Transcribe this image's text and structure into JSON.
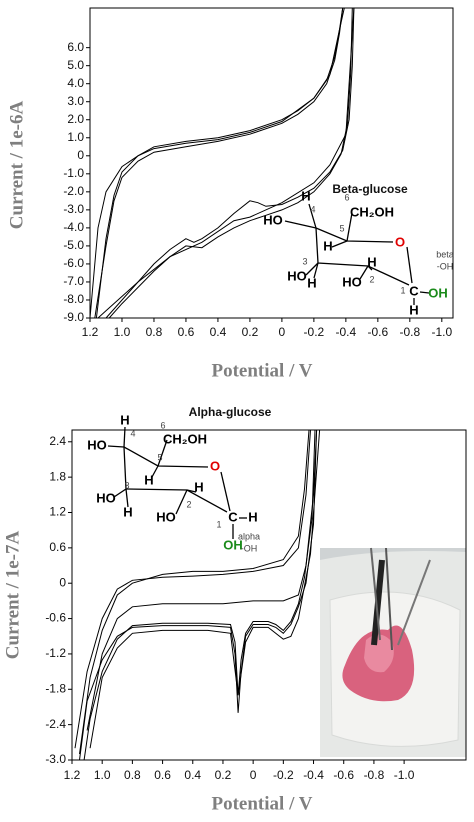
{
  "chart_data": [
    {
      "type": "line",
      "xlabel": "Potential / V",
      "ylabel": "Current / 1e-6A",
      "xlim": [
        1.2,
        -1.07
      ],
      "ylim": [
        -9.0,
        8.2
      ],
      "xticks": [
        1.2,
        {
          "value": 1,
          "label": "1.0"
        },
        0.8,
        0.6,
        0.4,
        0.2,
        0,
        -0.2,
        -0.4,
        -0.6,
        -0.8,
        {
          "value": -1,
          "label": "-1.0"
        }
      ],
      "yticks": [
        {
          "value": 6,
          "label": "6.0"
        },
        {
          "value": 5,
          "label": "5.0"
        },
        {
          "value": 4,
          "label": "4.0"
        },
        {
          "value": 3,
          "label": "3.0"
        },
        {
          "value": 2,
          "label": "2.0"
        },
        {
          "value": 1,
          "label": "1.0"
        },
        0,
        {
          "value": -1,
          "label": "-1.0"
        },
        {
          "value": -2,
          "label": "-2.0"
        },
        {
          "value": -3,
          "label": "-3.0"
        },
        {
          "value": -4,
          "label": "-4.0"
        },
        {
          "value": -5,
          "label": "-5.0"
        },
        {
          "value": -6,
          "label": "-6.0"
        },
        {
          "value": -7,
          "label": "-7.0"
        },
        {
          "value": -8,
          "label": "-8.0"
        },
        {
          "value": -9,
          "label": "-9.0"
        }
      ],
      "grid": false,
      "series": [
        {
          "color": "#000000",
          "x": [
            1.17,
            1.1,
            1.05,
            1.0,
            0.9,
            0.8,
            0.6,
            0.4,
            0.2,
            0.0,
            -0.1,
            -0.2,
            -0.28,
            -0.33,
            -0.36,
            -0.38,
            -0.45,
            -0.44,
            -0.42,
            -0.38,
            -0.3,
            -0.2,
            -0.1,
            0.0,
            0.1,
            0.15,
            0.2,
            0.3,
            0.4,
            0.5,
            0.55,
            0.6,
            0.7,
            0.8,
            0.9,
            1.0,
            1.1,
            1.15
          ],
          "values": [
            -9,
            -5,
            -2.5,
            -1.2,
            -0.3,
            0.2,
            0.5,
            0.8,
            1.2,
            1.8,
            2.3,
            3.0,
            4.0,
            5.3,
            6.8,
            8.2,
            8.2,
            5,
            2,
            0.3,
            -0.9,
            -1.8,
            -2.3,
            -2.7,
            -2.8,
            -2.6,
            -2.5,
            -3.2,
            -4.0,
            -4.6,
            -4.8,
            -4.6,
            -5.2,
            -6.0,
            -7.0,
            -7.8,
            -8.6,
            -9
          ]
        },
        {
          "color": "#000000",
          "x": [
            1.16,
            1.1,
            1.05,
            1.0,
            0.9,
            0.8,
            0.6,
            0.4,
            0.2,
            0.0,
            -0.1,
            -0.2,
            -0.28,
            -0.33,
            -0.36,
            -0.39,
            -0.44,
            -0.43,
            -0.41,
            -0.37,
            -0.3,
            -0.2,
            -0.1,
            0.0,
            0.1,
            0.2,
            0.3,
            0.4,
            0.5,
            0.6,
            0.7,
            0.8,
            0.9,
            1.0,
            1.08
          ],
          "values": [
            -9,
            -4.6,
            -2.2,
            -0.9,
            0.0,
            0.5,
            0.8,
            1.0,
            1.4,
            2.0,
            2.5,
            3.2,
            4.2,
            5.5,
            7.0,
            8.2,
            8.2,
            4.6,
            1.8,
            0.1,
            -1.0,
            -2.0,
            -2.6,
            -3.0,
            -3.3,
            -3.6,
            -4.0,
            -4.5,
            -5.1,
            -5.0,
            -5.6,
            -6.4,
            -7.3,
            -8.2,
            -9
          ]
        },
        {
          "color": "#000000",
          "x": [
            1.2,
            1.15,
            1.1,
            1.0,
            0.9,
            0.8,
            0.6,
            0.4,
            0.2,
            0,
            -0.2,
            -0.3,
            -0.36,
            -0.38,
            -0.45,
            -0.4,
            -0.3,
            -0.2,
            0,
            0.2,
            0.3,
            0.5,
            0.7,
            0.9,
            1.0,
            1.1
          ],
          "values": [
            -9,
            -4,
            -2,
            -0.6,
            0,
            0.4,
            0.7,
            0.9,
            1.3,
            1.9,
            3.2,
            4.5,
            7,
            8.2,
            8.2,
            1.2,
            -0.5,
            -1.5,
            -2.6,
            -3.4,
            -3.6,
            -4.8,
            -5.6,
            -7.0,
            -8.0,
            -9
          ]
        }
      ],
      "structure_name": "Beta-glucose",
      "structure_labels": [
        "6",
        "CH₂OH",
        "H",
        "4",
        "HO",
        "5",
        "H",
        "O",
        "3",
        "HO",
        "H",
        "H",
        "2",
        "HO",
        "1",
        "C",
        "OH",
        "H",
        "beta",
        "-OH"
      ]
    },
    {
      "type": "line",
      "xlabel": "Potential / V",
      "ylabel": "Current / 1e-7A",
      "xlim": [
        1.2,
        -1.41
      ],
      "ylim": [
        -3.0,
        2.6
      ],
      "xticks": [
        1.2,
        {
          "value": 1,
          "label": "1.0"
        },
        0.8,
        0.6,
        0.4,
        0.2,
        0,
        -0.2,
        -0.4,
        -0.6,
        -0.8,
        {
          "value": -1,
          "label": "-1.0"
        }
      ],
      "yticks": [
        2.4,
        1.8,
        1.2,
        0.6,
        0,
        -0.6,
        -1.2,
        -1.8,
        -2.4,
        {
          "value": -3,
          "label": "-3.0"
        }
      ],
      "grid": false,
      "series": [
        {
          "color": "#000000",
          "x": [
            1.18,
            1.1,
            1.0,
            0.9,
            0.8,
            0.6,
            0.4,
            0.2,
            0,
            -0.2,
            -0.3,
            -0.35,
            -0.38,
            -0.42,
            -0.4,
            -0.35,
            -0.3,
            -0.25,
            -0.2,
            -0.15,
            -0.1,
            0,
            0.05,
            0.08,
            0.1,
            0.12,
            0.15,
            0.3,
            0.6,
            0.8,
            0.9,
            1.0,
            1.1,
            1.15
          ],
          "values": [
            -2.8,
            -1.5,
            -0.6,
            -0.1,
            0.05,
            0.1,
            0.12,
            0.15,
            0.2,
            0.3,
            0.6,
            1.5,
            2.6,
            2.6,
            1.0,
            0.0,
            -0.4,
            -0.7,
            -0.85,
            -0.75,
            -0.7,
            -0.7,
            -0.9,
            -1.5,
            -2.2,
            -1.2,
            -0.75,
            -0.72,
            -0.72,
            -0.75,
            -0.9,
            -1.3,
            -2.0,
            -3.0
          ]
        },
        {
          "color": "#000000",
          "x": [
            1.15,
            1.08,
            1.0,
            0.9,
            0.8,
            0.6,
            0.4,
            0.2,
            0,
            -0.2,
            -0.3,
            -0.34,
            -0.37,
            -0.41,
            -0.39,
            -0.34,
            -0.3,
            -0.25,
            -0.2,
            -0.15,
            -0.1,
            0,
            0.05,
            0.08,
            0.1,
            0.12,
            0.15,
            0.3,
            0.6,
            0.8,
            0.9,
            1.0,
            1.08,
            1.12
          ],
          "values": [
            -2.9,
            -1.6,
            -0.8,
            -0.2,
            0.0,
            0.15,
            0.2,
            0.2,
            0.25,
            0.4,
            0.8,
            1.6,
            2.6,
            2.6,
            1.1,
            0.1,
            -0.35,
            -0.65,
            -0.8,
            -0.7,
            -0.65,
            -0.65,
            -0.85,
            -1.3,
            -1.9,
            -1.0,
            -0.7,
            -0.68,
            -0.68,
            -0.72,
            -0.95,
            -1.5,
            -2.3,
            -3.0
          ]
        },
        {
          "color": "#000000",
          "x": [
            1.1,
            1.0,
            0.9,
            0.8,
            0.6,
            0.4,
            0.2,
            0,
            -0.2,
            -0.3,
            -0.35,
            -0.4,
            -0.42,
            -0.44,
            -0.38,
            -0.3,
            -0.25,
            -0.2,
            -0.1,
            0,
            0.05,
            0.1,
            0.15,
            0.3,
            0.6,
            0.8,
            0.9,
            1.0,
            1.08
          ],
          "values": [
            -2.5,
            -1.2,
            -0.6,
            -0.4,
            -0.35,
            -0.35,
            -0.35,
            -0.3,
            -0.3,
            -0.2,
            0.3,
            1.5,
            2.6,
            2.6,
            0.5,
            -0.6,
            -0.9,
            -0.95,
            -0.75,
            -0.75,
            -1.0,
            -1.9,
            -0.85,
            -0.8,
            -0.8,
            -0.85,
            -1.1,
            -1.6,
            -2.8
          ]
        }
      ],
      "structure_name": "Alpha-glucose",
      "structure_labels": [
        "6",
        "CH₂OH",
        "H",
        "4",
        "HO",
        "5",
        "H",
        "O",
        "3",
        "HO",
        "H",
        "H",
        "2",
        "HO",
        "1",
        "C",
        "H",
        "OH",
        "alpha",
        "-OH"
      ]
    }
  ]
}
